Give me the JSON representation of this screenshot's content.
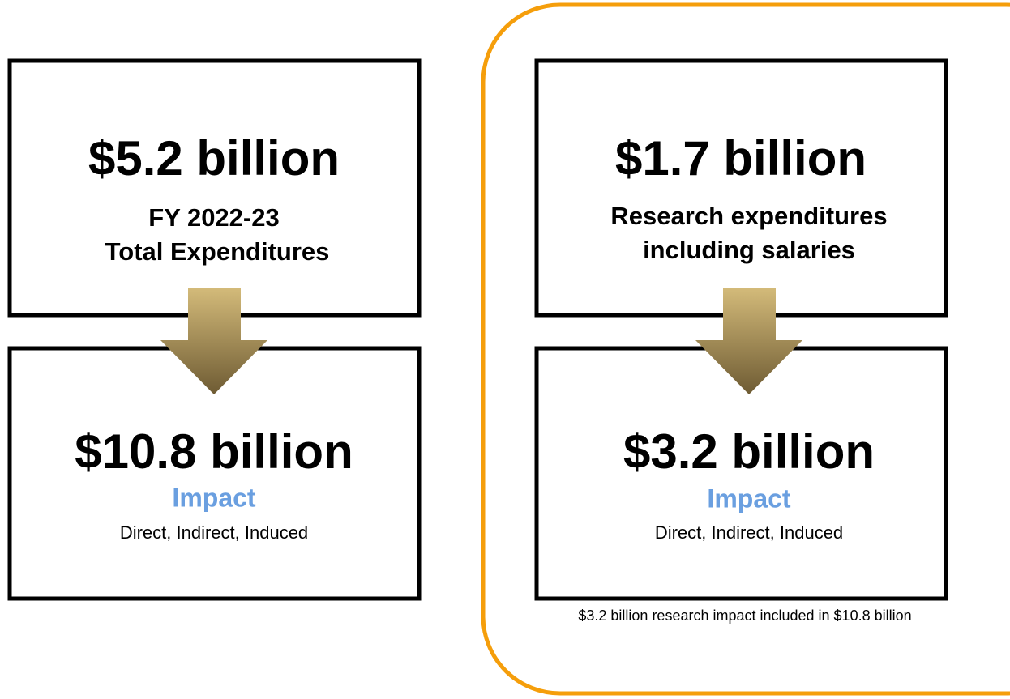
{
  "panels": [
    {
      "top": {
        "amount": "$5.2 billion",
        "lines": [
          "FY 2022-23",
          "Total Expenditures"
        ]
      },
      "bottom": {
        "amount": "$10.8 billion",
        "label": "Impact",
        "detail": "Direct, Indirect, Induced"
      }
    },
    {
      "top": {
        "amount": "$1.7 billion",
        "lines": [
          "Research expenditures",
          "including salaries"
        ]
      },
      "bottom": {
        "amount": "$3.2 billion",
        "label": "Impact",
        "detail": "Direct, Indirect, Induced"
      }
    }
  ],
  "footnote": "$3.2 billion research impact included in $10.8 billion"
}
